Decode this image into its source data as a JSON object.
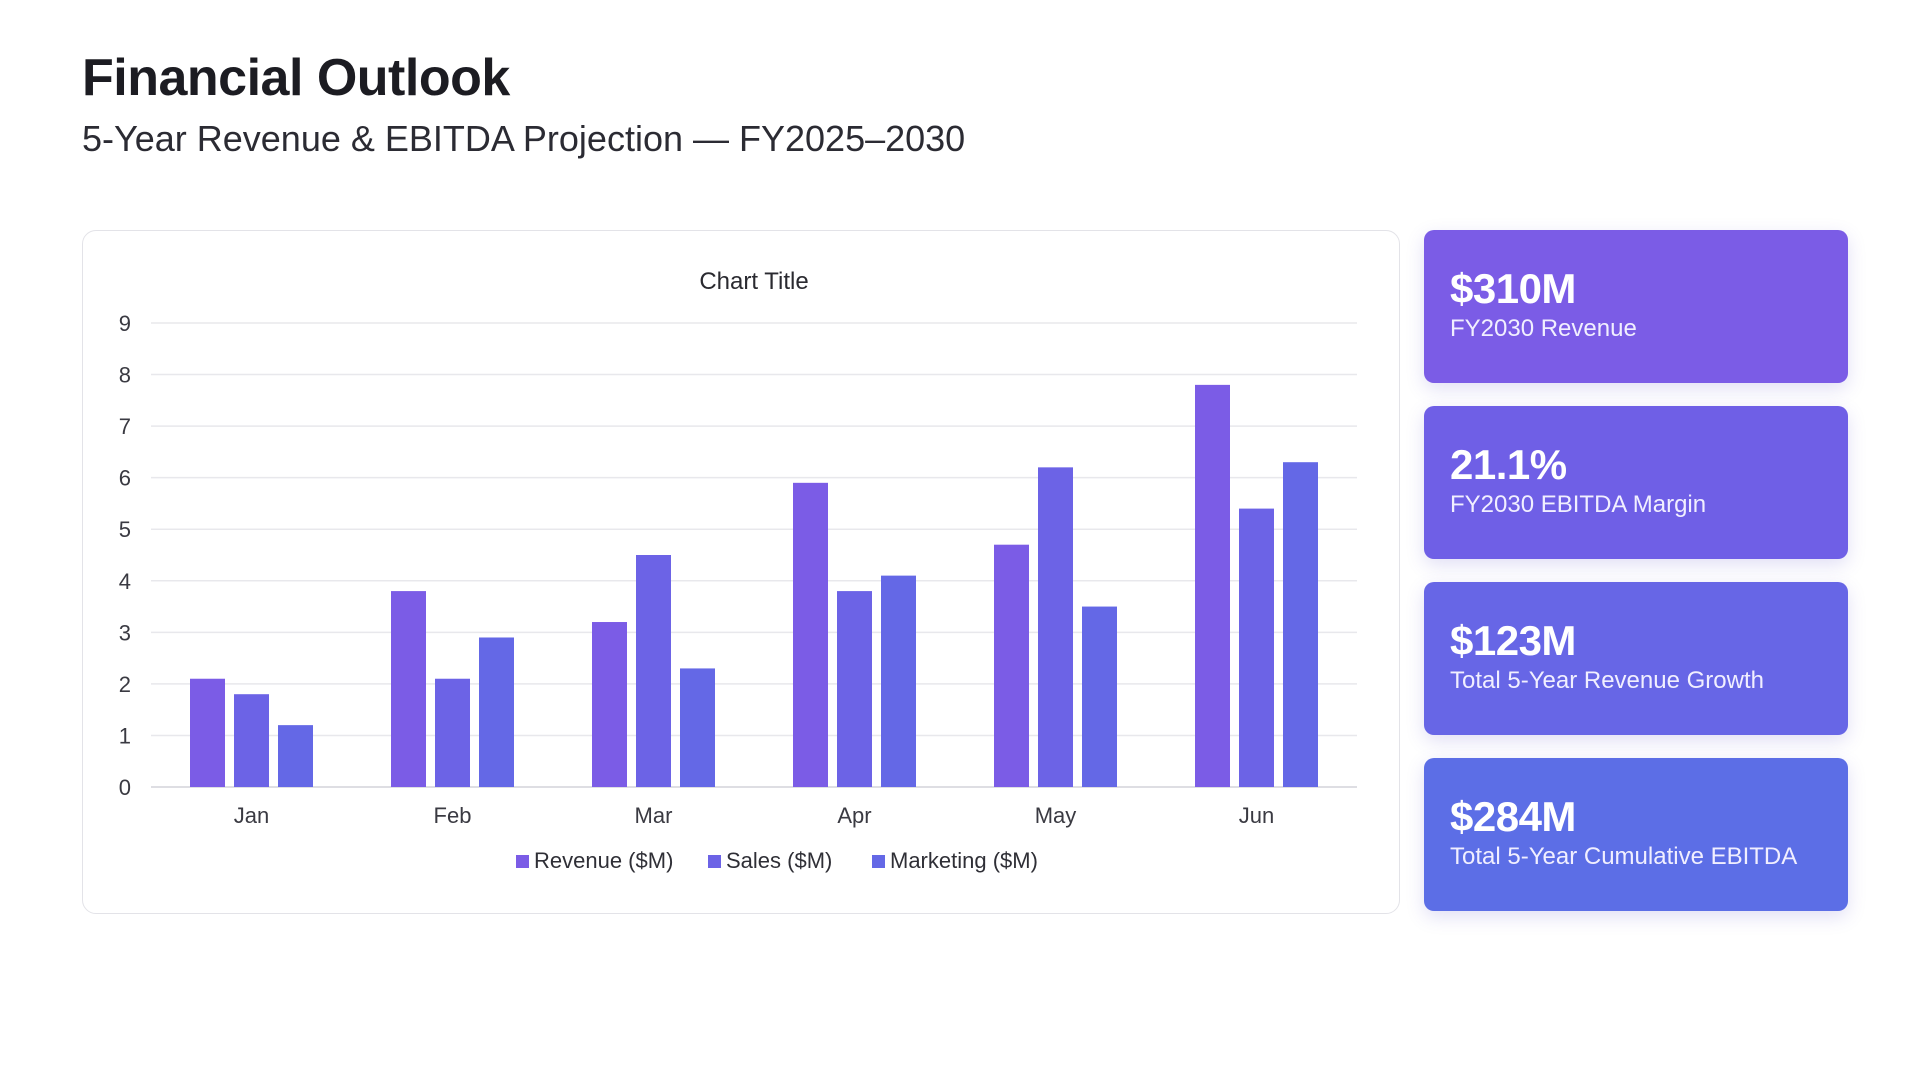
{
  "header": {
    "title": "Financial Outlook",
    "subtitle": "5-Year Revenue & EBITDA Projection — FY2025–2030"
  },
  "colors": {
    "revenue": "#7b5ce6",
    "sales": "#6c63e6",
    "marketing": "#6468e6",
    "grid": "#e8e8ec",
    "axis": "#d4d4da",
    "kpi_1": "#7b5ce6",
    "kpi_2": "#6f5fe6",
    "kpi_3": "#6766e6",
    "kpi_4": "#5c6ee6"
  },
  "chart_data": {
    "type": "bar",
    "title": "Chart Title",
    "xlabel": "",
    "ylabel": "",
    "categories": [
      "Jan",
      "Feb",
      "Mar",
      "Apr",
      "May",
      "Jun"
    ],
    "series": [
      {
        "name": "Revenue ($M)",
        "values": [
          2.1,
          3.8,
          3.2,
          5.9,
          4.7,
          7.8
        ]
      },
      {
        "name": "Sales ($M)",
        "values": [
          1.8,
          2.1,
          4.5,
          3.8,
          6.2,
          5.4
        ]
      },
      {
        "name": "Marketing ($M)",
        "values": [
          1.2,
          2.9,
          2.3,
          4.1,
          3.5,
          6.3
        ]
      }
    ],
    "ylim": [
      0,
      9
    ],
    "yticks": [
      "0",
      "1",
      "2",
      "3",
      "4",
      "5",
      "6",
      "7",
      "8",
      "9"
    ],
    "grid": true,
    "legend_position": "bottom"
  },
  "kpis": [
    {
      "value": "$310M",
      "label": "FY2030 Revenue"
    },
    {
      "value": "21.1%",
      "label": "FY2030 EBITDA Margin"
    },
    {
      "value": "$123M",
      "label": "Total 5-Year Revenue Growth"
    },
    {
      "value": "$284M",
      "label": "Total 5-Year Cumulative EBITDA"
    }
  ]
}
